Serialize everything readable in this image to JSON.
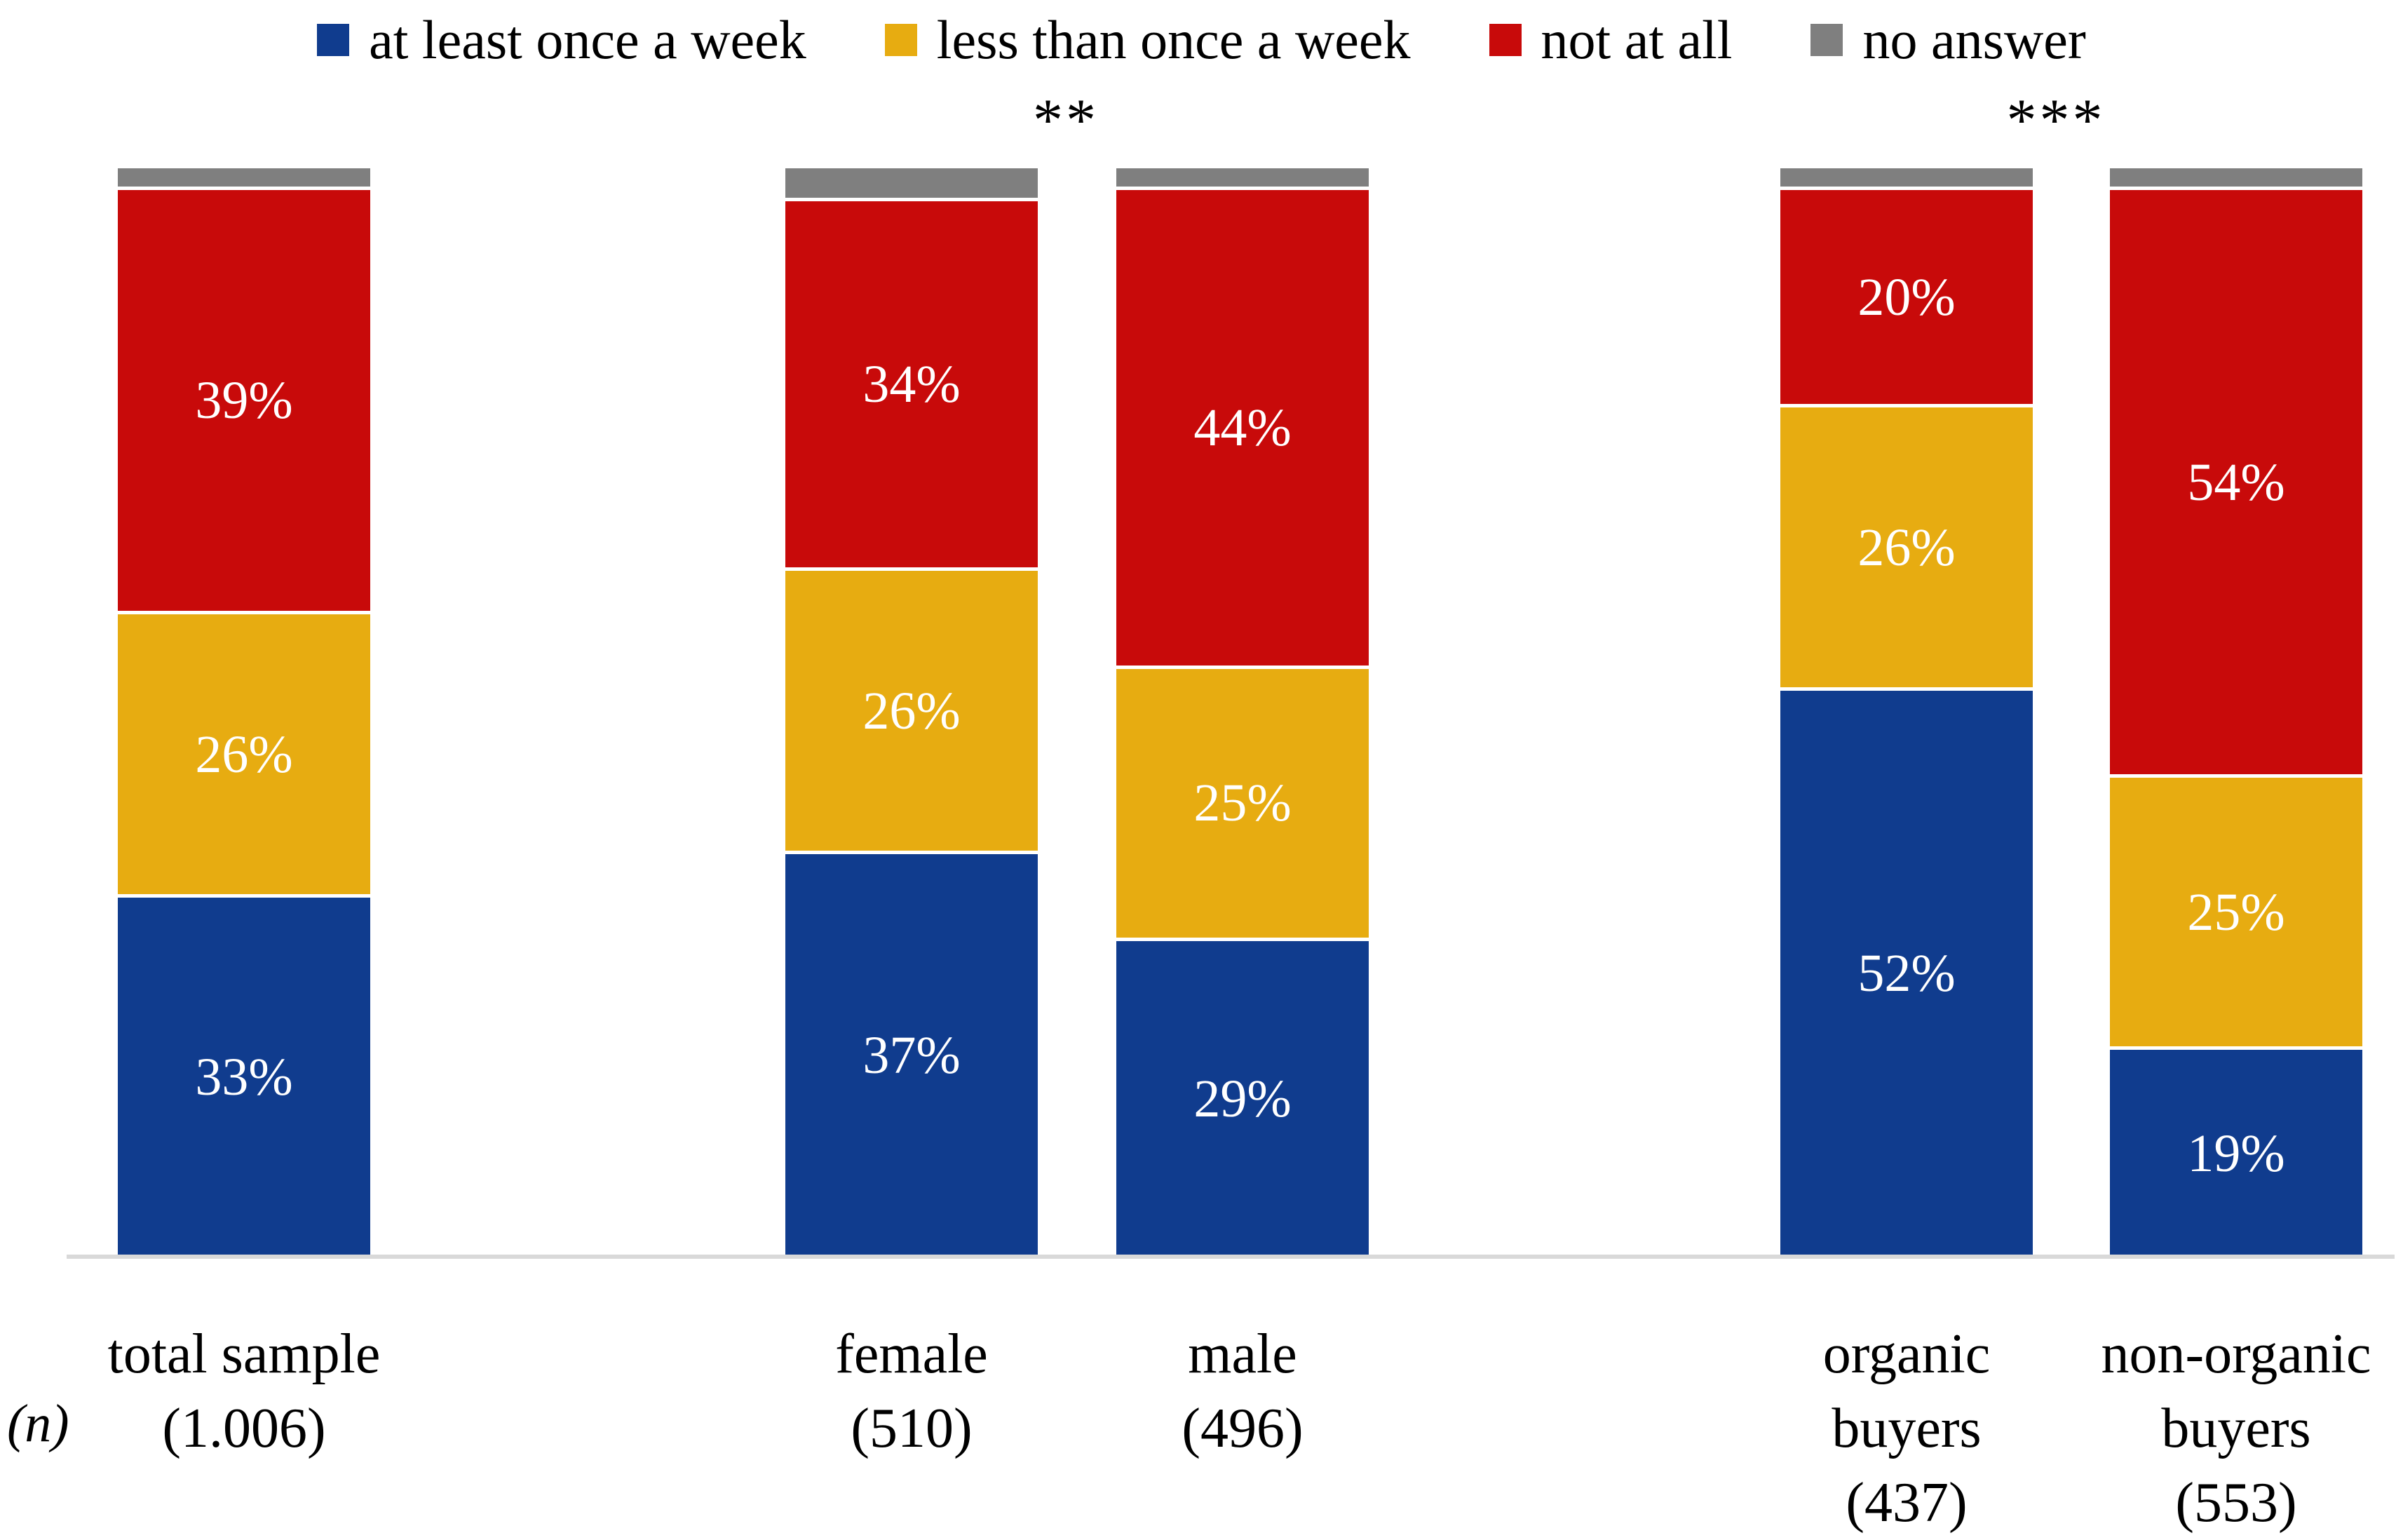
{
  "chart_data": {
    "type": "bar",
    "stacked": true,
    "orientation": "vertical",
    "unit": "%",
    "ylim": [
      0,
      100
    ],
    "grid": false,
    "legend_position": "top",
    "axis_note": "(n)",
    "value_label_color": "#ffffff",
    "axis_line_color": "#D9D9D9",
    "categories": [
      "total sample",
      "female",
      "male",
      "organic buyers",
      "non-organic buyers"
    ],
    "sample_sizes": [
      "1.006",
      "510",
      "496",
      "437",
      "553"
    ],
    "category_label_lines": [
      [
        "total sample",
        "(1.006)"
      ],
      [
        "female",
        "(510)"
      ],
      [
        "male",
        "(496)"
      ],
      [
        "organic",
        "buyers",
        "(437)"
      ],
      [
        "non-organic",
        "buyers",
        "(553)"
      ]
    ],
    "series": [
      {
        "name": "at least once a week",
        "color": "#103C8E",
        "values": [
          33,
          37,
          29,
          52,
          19
        ],
        "show_labels": true
      },
      {
        "name": "less than once a week",
        "color": "#E7AC11",
        "values": [
          26,
          26,
          25,
          26,
          25
        ],
        "show_labels": true
      },
      {
        "name": "not at all",
        "color": "#C80A0A",
        "values": [
          39,
          34,
          44,
          20,
          54
        ],
        "show_labels": true
      },
      {
        "name": "no answer",
        "color": "#7F7F7F",
        "values": [
          2,
          3,
          2,
          2,
          2
        ],
        "show_labels": false
      }
    ],
    "annotations": [
      {
        "text": "**",
        "between": [
          "female",
          "male"
        ]
      },
      {
        "text": "***",
        "between": [
          "organic buyers",
          "non-organic buyers"
        ]
      }
    ]
  }
}
